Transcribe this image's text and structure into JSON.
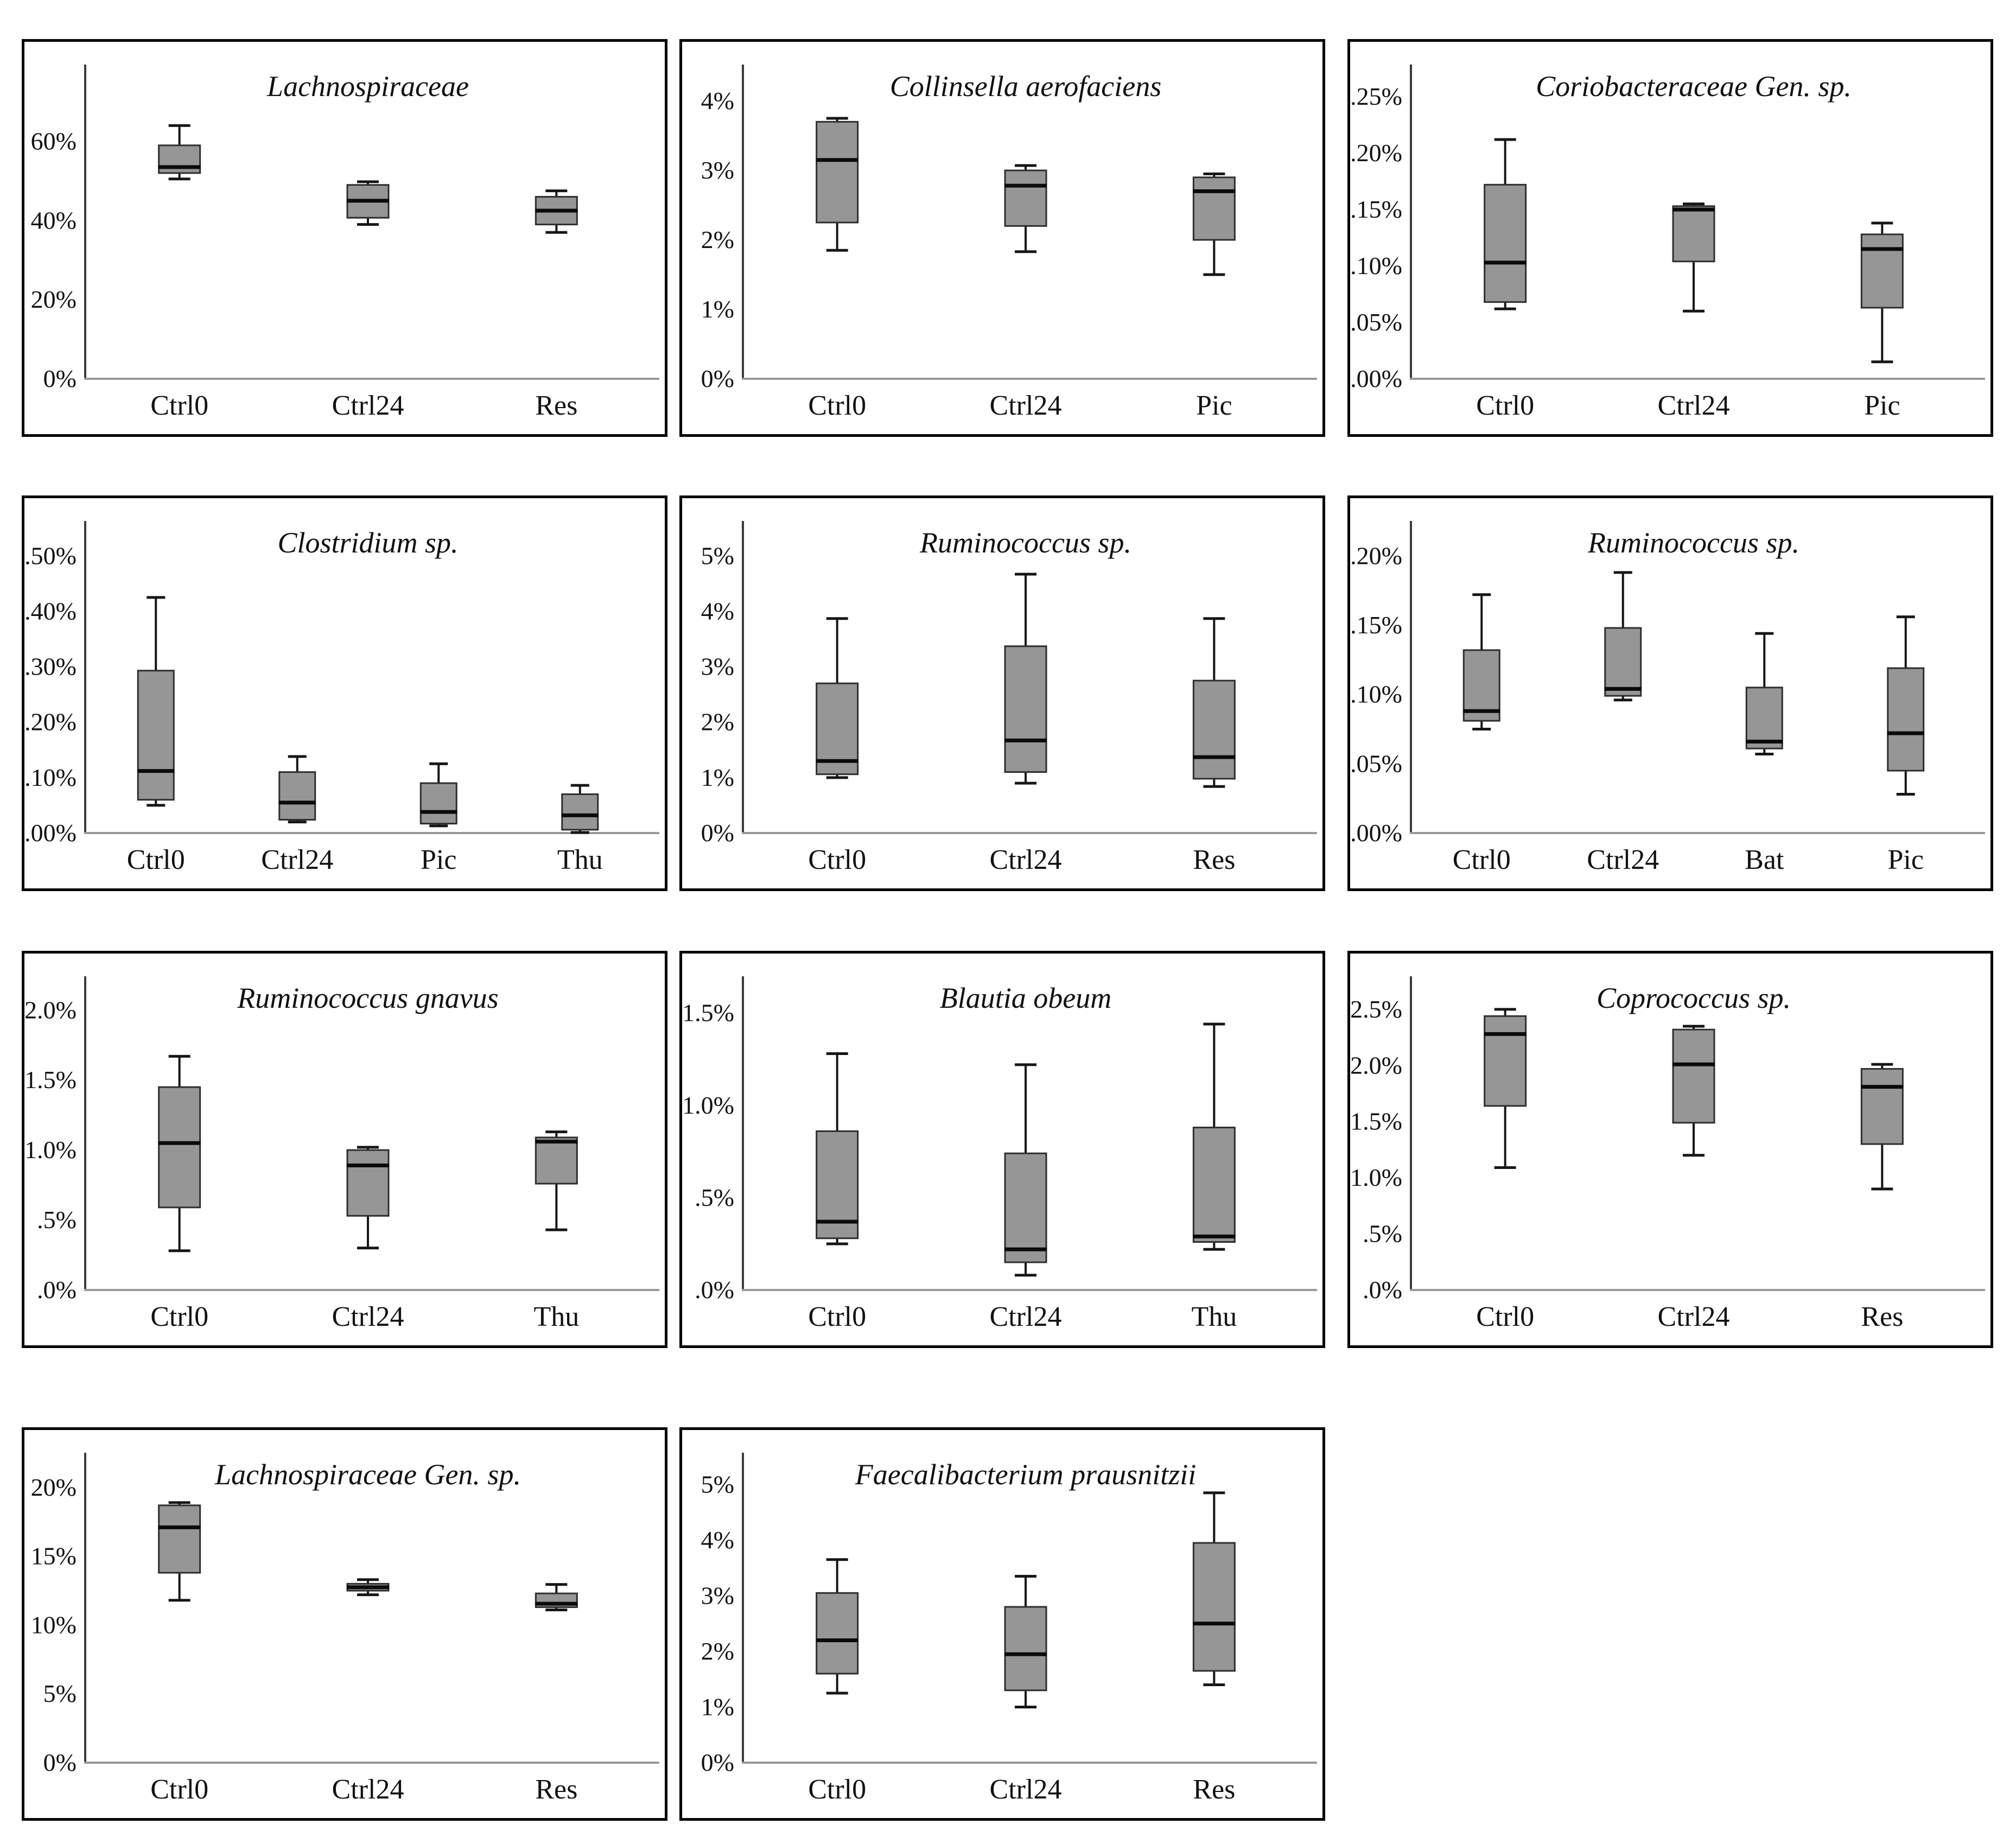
{
  "figure": {
    "description": "Grid of box plots of relative abundance (%) of bacterial taxa across treatment groups",
    "background": "#ffffff",
    "panel_border_color": "#000000",
    "box_fill": "#969696",
    "box_stroke": "#2e2e2e",
    "median_color": "#0b0b0b",
    "whisker_color": "#161616",
    "y_axis_color": "#3a3a3a",
    "x_baseline_color": "#999999",
    "text_color": "#111111"
  },
  "chart_data": [
    {
      "type": "boxplot",
      "title": "Lachnospiraceae",
      "xlabel": "",
      "ylabel": "",
      "grid": false,
      "categories": [
        "Ctrl0",
        "Ctrl24",
        "Res"
      ],
      "yticks": {
        "labels": [
          "0%",
          "20%",
          "40%",
          "60%"
        ],
        "values": [
          0,
          20,
          40,
          60
        ]
      },
      "ylim": [
        0,
        79
      ],
      "series": [
        {
          "category": "Ctrl0",
          "min": 50.5,
          "q1": 52.0,
          "median": 53.5,
          "q3": 59.0,
          "max": 64.0
        },
        {
          "category": "Ctrl24",
          "min": 39.0,
          "q1": 40.7,
          "median": 45.0,
          "q3": 49.0,
          "max": 49.8
        },
        {
          "category": "Res",
          "min": 37.0,
          "q1": 39.0,
          "median": 42.5,
          "q3": 46.0,
          "max": 47.5
        }
      ]
    },
    {
      "type": "boxplot",
      "title": "Collinsella aerofaciens",
      "xlabel": "",
      "ylabel": "",
      "grid": false,
      "categories": [
        "Ctrl0",
        "Ctrl24",
        "Pic"
      ],
      "yticks": {
        "labels": [
          "0%",
          "1%",
          "2%",
          "3%",
          "4%"
        ],
        "values": [
          0,
          1,
          2,
          3,
          4
        ]
      },
      "ylim": [
        0,
        4.5
      ],
      "series": [
        {
          "category": "Ctrl0",
          "min": 1.85,
          "q1": 2.25,
          "median": 3.15,
          "q3": 3.7,
          "max": 3.75
        },
        {
          "category": "Ctrl24",
          "min": 1.83,
          "q1": 2.2,
          "median": 2.78,
          "q3": 3.0,
          "max": 3.07
        },
        {
          "category": "Pic",
          "min": 1.5,
          "q1": 2.0,
          "median": 2.7,
          "q3": 2.9,
          "max": 2.95
        }
      ]
    },
    {
      "type": "boxplot",
      "title": "Coriobacteraceae Gen. sp.",
      "xlabel": "",
      "ylabel": "",
      "grid": false,
      "categories": [
        "Ctrl0",
        "Ctrl24",
        "Pic"
      ],
      "yticks": {
        "labels": [
          ".00%",
          ".05%",
          ".10%",
          ".15%",
          ".20%",
          ".25%"
        ],
        "values": [
          0,
          0.05,
          0.1,
          0.15,
          0.2,
          0.25
        ]
      },
      "ylim": [
        0,
        0.277
      ],
      "series": [
        {
          "category": "Ctrl0",
          "min": 0.062,
          "q1": 0.068,
          "median": 0.103,
          "q3": 0.172,
          "max": 0.212
        },
        {
          "category": "Ctrl24",
          "min": 0.06,
          "q1": 0.104,
          "median": 0.15,
          "q3": 0.153,
          "max": 0.155
        },
        {
          "category": "Pic",
          "min": 0.015,
          "q1": 0.063,
          "median": 0.115,
          "q3": 0.128,
          "max": 0.138
        }
      ]
    },
    {
      "type": "boxplot",
      "title": "Clostridium sp.",
      "xlabel": "",
      "ylabel": "",
      "grid": false,
      "categories": [
        "Ctrl0",
        "Ctrl24",
        "Pic",
        "Thu"
      ],
      "yticks": {
        "labels": [
          ".00%",
          ".10%",
          ".20%",
          ".30%",
          ".40%",
          ".50%"
        ],
        "values": [
          0,
          0.1,
          0.2,
          0.3,
          0.4,
          0.5
        ]
      },
      "ylim": [
        0,
        0.56
      ],
      "series": [
        {
          "category": "Ctrl0",
          "min": 0.05,
          "q1": 0.06,
          "median": 0.112,
          "q3": 0.293,
          "max": 0.425
        },
        {
          "category": "Ctrl24",
          "min": 0.02,
          "q1": 0.024,
          "median": 0.055,
          "q3": 0.11,
          "max": 0.138
        },
        {
          "category": "Pic",
          "min": 0.013,
          "q1": 0.017,
          "median": 0.038,
          "q3": 0.09,
          "max": 0.125
        },
        {
          "category": "Thu",
          "min": 0.001,
          "q1": 0.006,
          "median": 0.032,
          "q3": 0.07,
          "max": 0.086
        }
      ]
    },
    {
      "type": "boxplot",
      "title": "Ruminococcus sp.",
      "xlabel": "",
      "ylabel": "",
      "grid": false,
      "categories": [
        "Ctrl0",
        "Ctrl24",
        "Res"
      ],
      "yticks": {
        "labels": [
          "0%",
          "1%",
          "2%",
          "3%",
          "4%",
          "5%"
        ],
        "values": [
          0,
          1,
          2,
          3,
          4,
          5
        ]
      },
      "ylim": [
        0,
        5.6
      ],
      "series": [
        {
          "category": "Ctrl0",
          "min": 1.0,
          "q1": 1.06,
          "median": 1.3,
          "q3": 2.7,
          "max": 3.87
        },
        {
          "category": "Ctrl24",
          "min": 0.9,
          "q1": 1.1,
          "median": 1.67,
          "q3": 3.37,
          "max": 4.67
        },
        {
          "category": "Res",
          "min": 0.84,
          "q1": 0.98,
          "median": 1.37,
          "q3": 2.75,
          "max": 3.87
        }
      ]
    },
    {
      "type": "boxplot",
      "title": "Ruminococcus sp.",
      "xlabel": "",
      "ylabel": "",
      "grid": false,
      "categories": [
        "Ctrl0",
        "Ctrl24",
        "Bat",
        "Pic"
      ],
      "yticks": {
        "labels": [
          ".00%",
          ".05%",
          ".10%",
          ".15%",
          ".20%"
        ],
        "values": [
          0,
          0.05,
          0.1,
          0.15,
          0.2
        ]
      },
      "ylim": [
        0,
        0.224
      ],
      "series": [
        {
          "category": "Ctrl0",
          "min": 0.075,
          "q1": 0.081,
          "median": 0.088,
          "q3": 0.132,
          "max": 0.172
        },
        {
          "category": "Ctrl24",
          "min": 0.096,
          "q1": 0.099,
          "median": 0.104,
          "q3": 0.148,
          "max": 0.188
        },
        {
          "category": "Bat",
          "min": 0.057,
          "q1": 0.061,
          "median": 0.066,
          "q3": 0.105,
          "max": 0.144
        },
        {
          "category": "Pic",
          "min": 0.028,
          "q1": 0.045,
          "median": 0.072,
          "q3": 0.119,
          "max": 0.156
        }
      ]
    },
    {
      "type": "boxplot",
      "title": "Ruminococcus gnavus",
      "xlabel": "",
      "ylabel": "",
      "grid": false,
      "categories": [
        "Ctrl0",
        "Ctrl24",
        "Thu"
      ],
      "yticks": {
        "labels": [
          ".0%",
          ".5%",
          "1.0%",
          "1.5%",
          "2.0%"
        ],
        "values": [
          0,
          0.5,
          1.0,
          1.5,
          2.0
        ]
      },
      "ylim": [
        0,
        2.23
      ],
      "series": [
        {
          "category": "Ctrl0",
          "min": 0.28,
          "q1": 0.59,
          "median": 1.05,
          "q3": 1.45,
          "max": 1.67
        },
        {
          "category": "Ctrl24",
          "min": 0.3,
          "q1": 0.53,
          "median": 0.89,
          "q3": 1.0,
          "max": 1.02
        },
        {
          "category": "Thu",
          "min": 0.43,
          "q1": 0.76,
          "median": 1.06,
          "q3": 1.09,
          "max": 1.13
        }
      ]
    },
    {
      "type": "boxplot",
      "title": "Blautia obeum",
      "xlabel": "",
      "ylabel": "",
      "grid": false,
      "categories": [
        "Ctrl0",
        "Ctrl24",
        "Thu"
      ],
      "yticks": {
        "labels": [
          ".0%",
          ".5%",
          "1.0%",
          "1.5%"
        ],
        "values": [
          0,
          0.5,
          1.0,
          1.5
        ]
      },
      "ylim": [
        0,
        1.69
      ],
      "series": [
        {
          "category": "Ctrl0",
          "min": 0.25,
          "q1": 0.28,
          "median": 0.37,
          "q3": 0.86,
          "max": 1.28
        },
        {
          "category": "Ctrl24",
          "min": 0.08,
          "q1": 0.15,
          "median": 0.22,
          "q3": 0.74,
          "max": 1.22
        },
        {
          "category": "Thu",
          "min": 0.22,
          "q1": 0.26,
          "median": 0.29,
          "q3": 0.88,
          "max": 1.44
        }
      ]
    },
    {
      "type": "boxplot",
      "title": "Coprococcus sp.",
      "xlabel": "",
      "ylabel": "",
      "grid": false,
      "categories": [
        "Ctrl0",
        "Ctrl24",
        "Res"
      ],
      "yticks": {
        "labels": [
          ".0%",
          ".5%",
          "1.0%",
          "1.5%",
          "2.0%",
          "2.5%"
        ],
        "values": [
          0,
          0.5,
          1.0,
          1.5,
          2.0,
          2.5
        ]
      },
      "ylim": [
        0,
        2.78
      ],
      "series": [
        {
          "category": "Ctrl0",
          "min": 1.09,
          "q1": 1.64,
          "median": 2.28,
          "q3": 2.44,
          "max": 2.5
        },
        {
          "category": "Ctrl24",
          "min": 1.2,
          "q1": 1.49,
          "median": 2.01,
          "q3": 2.32,
          "max": 2.35
        },
        {
          "category": "Res",
          "min": 0.9,
          "q1": 1.3,
          "median": 1.81,
          "q3": 1.97,
          "max": 2.01
        }
      ]
    },
    {
      "type": "boxplot",
      "title": "Lachnospiraceae Gen. sp.",
      "xlabel": "",
      "ylabel": "",
      "grid": false,
      "categories": [
        "Ctrl0",
        "Ctrl24",
        "Res"
      ],
      "yticks": {
        "labels": [
          "0%",
          "5%",
          "10%",
          "15%",
          "20%"
        ],
        "values": [
          0,
          5,
          10,
          15,
          20
        ]
      },
      "ylim": [
        0,
        22.4
      ],
      "series": [
        {
          "category": "Ctrl0",
          "min": 11.8,
          "q1": 13.8,
          "median": 17.1,
          "q3": 18.7,
          "max": 18.9
        },
        {
          "category": "Ctrl24",
          "min": 12.2,
          "q1": 12.5,
          "median": 12.75,
          "q3": 13.0,
          "max": 13.3
        },
        {
          "category": "Res",
          "min": 11.1,
          "q1": 11.3,
          "median": 11.55,
          "q3": 12.3,
          "max": 12.95
        }
      ]
    },
    {
      "type": "boxplot",
      "title": "Faecalibacterium prausnitzii",
      "xlabel": "",
      "ylabel": "",
      "grid": false,
      "categories": [
        "Ctrl0",
        "Ctrl24",
        "Res"
      ],
      "yticks": {
        "labels": [
          "0%",
          "1%",
          "2%",
          "3%",
          "4%",
          "5%"
        ],
        "values": [
          0,
          1,
          2,
          3,
          4,
          5
        ]
      },
      "ylim": [
        0,
        5.54
      ],
      "series": [
        {
          "category": "Ctrl0",
          "min": 1.25,
          "q1": 1.6,
          "median": 2.2,
          "q3": 3.05,
          "max": 3.65
        },
        {
          "category": "Ctrl24",
          "min": 1.0,
          "q1": 1.3,
          "median": 1.95,
          "q3": 2.8,
          "max": 3.35
        },
        {
          "category": "Res",
          "min": 1.4,
          "q1": 1.65,
          "median": 2.5,
          "q3": 3.95,
          "max": 4.85
        }
      ]
    }
  ]
}
